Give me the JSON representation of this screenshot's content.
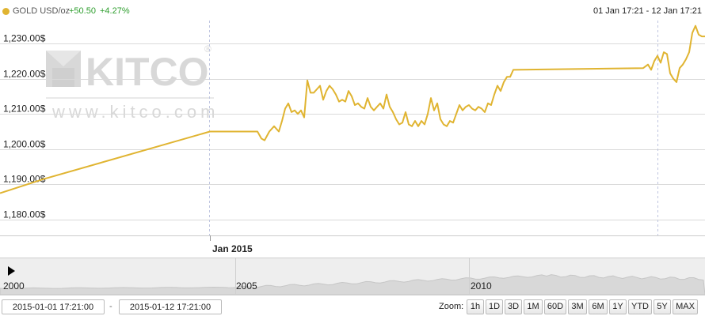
{
  "header": {
    "symbol": "GOLD USD/oz",
    "change": "+50.50",
    "change_pct": "+4.27%",
    "range": "01 Jan 17:21 - 12 Jan 17:21"
  },
  "watermark": {
    "brand": "KITCO",
    "registered": "®",
    "url": "www.kitco.com"
  },
  "colors": {
    "line": "#e0b431",
    "up": "#2e9e2e",
    "grid": "#d9d9d9",
    "watermark": "#d8d8d8"
  },
  "chart_data": {
    "type": "line",
    "ylim": [
      1175.5,
      1236.5
    ],
    "yticks": [
      1180,
      1190,
      1200,
      1210,
      1220,
      1230
    ],
    "ytick_labels": [
      "1,180.00$",
      "1,190.00$",
      "1,200.00$",
      "1,210.00$",
      "1,220.00$",
      "1,230.00$"
    ],
    "x_label": "Jan 2015",
    "series": [
      {
        "values": [
          [
            0,
            1187.5
          ],
          [
            55,
            1191.5
          ],
          [
            265,
            1205
          ],
          [
            325,
            1205
          ],
          [
            330,
            1203
          ],
          [
            334,
            1202.5
          ],
          [
            340,
            1205
          ],
          [
            346,
            1206.5
          ],
          [
            352,
            1205
          ],
          [
            356,
            1208
          ],
          [
            360,
            1211.5
          ],
          [
            364,
            1213
          ],
          [
            368,
            1210.5
          ],
          [
            372,
            1211
          ],
          [
            376,
            1210
          ],
          [
            380,
            1211
          ],
          [
            384,
            1209
          ],
          [
            388,
            1219.5
          ],
          [
            392,
            1216
          ],
          [
            396,
            1216
          ],
          [
            400,
            1217
          ],
          [
            404,
            1218
          ],
          [
            408,
            1214
          ],
          [
            412,
            1216.5
          ],
          [
            416,
            1218
          ],
          [
            420,
            1217
          ],
          [
            424,
            1215.5
          ],
          [
            428,
            1213.5
          ],
          [
            432,
            1214
          ],
          [
            436,
            1213.5
          ],
          [
            440,
            1216.5
          ],
          [
            444,
            1215
          ],
          [
            448,
            1212.5
          ],
          [
            452,
            1213
          ],
          [
            456,
            1212
          ],
          [
            460,
            1211.5
          ],
          [
            464,
            1214.5
          ],
          [
            468,
            1212
          ],
          [
            472,
            1211
          ],
          [
            476,
            1212
          ],
          [
            480,
            1213
          ],
          [
            484,
            1211.5
          ],
          [
            488,
            1215.5
          ],
          [
            492,
            1212
          ],
          [
            496,
            1210.5
          ],
          [
            500,
            1208.5
          ],
          [
            504,
            1207
          ],
          [
            508,
            1207.5
          ],
          [
            512,
            1210.5
          ],
          [
            516,
            1207
          ],
          [
            520,
            1206.5
          ],
          [
            524,
            1208
          ],
          [
            528,
            1206.5
          ],
          [
            532,
            1208
          ],
          [
            536,
            1207
          ],
          [
            540,
            1210
          ],
          [
            544,
            1214.5
          ],
          [
            548,
            1211
          ],
          [
            552,
            1213
          ],
          [
            556,
            1208.5
          ],
          [
            560,
            1207
          ],
          [
            564,
            1206.5
          ],
          [
            568,
            1208
          ],
          [
            572,
            1207.5
          ],
          [
            576,
            1210
          ],
          [
            580,
            1212.5
          ],
          [
            584,
            1211
          ],
          [
            588,
            1212
          ],
          [
            592,
            1212.5
          ],
          [
            596,
            1211.5
          ],
          [
            600,
            1211
          ],
          [
            604,
            1212
          ],
          [
            608,
            1211.5
          ],
          [
            612,
            1210.5
          ],
          [
            616,
            1213
          ],
          [
            620,
            1212.5
          ],
          [
            624,
            1215.5
          ],
          [
            628,
            1218
          ],
          [
            632,
            1216.5
          ],
          [
            636,
            1219
          ],
          [
            640,
            1220.5
          ],
          [
            644,
            1220.5
          ],
          [
            648,
            1222.5
          ],
          [
            812,
            1223
          ],
          [
            818,
            1224
          ],
          [
            822,
            1222.5
          ],
          [
            826,
            1225
          ],
          [
            830,
            1226.5
          ],
          [
            834,
            1224.5
          ],
          [
            838,
            1227.5
          ],
          [
            842,
            1227
          ],
          [
            846,
            1221.5
          ],
          [
            850,
            1220
          ],
          [
            854,
            1219
          ],
          [
            858,
            1223
          ],
          [
            862,
            1224
          ],
          [
            866,
            1225.5
          ],
          [
            870,
            1227.5
          ],
          [
            874,
            1233
          ],
          [
            878,
            1235
          ],
          [
            882,
            1232.5
          ],
          [
            886,
            1232
          ],
          [
            890,
            1232
          ]
        ]
      }
    ]
  },
  "navigator": {
    "years": [
      "2000",
      "2005",
      "2010"
    ]
  },
  "controls": {
    "from_date": "2015-01-01 17:21:00",
    "to_date": "2015-01-12 17:21:00",
    "separator": "-",
    "zoom_label": "Zoom:",
    "zoom_buttons": [
      "1h",
      "1D",
      "3D",
      "1M",
      "60D",
      "3M",
      "6M",
      "1Y",
      "YTD",
      "5Y",
      "MAX"
    ]
  }
}
